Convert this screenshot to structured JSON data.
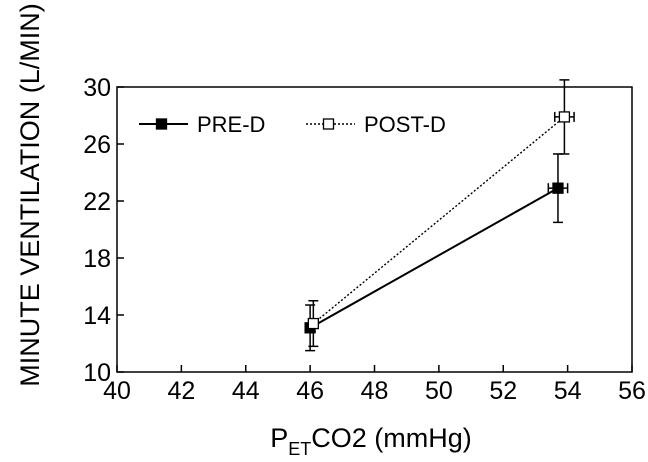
{
  "chart_data": {
    "type": "line",
    "title": "",
    "xlabel": {
      "main": "P",
      "sub": "ET",
      "rest": "CO2 (mmHg)"
    },
    "ylabel": "MINUTE VENTILATION (L/MIN)",
    "xlim": [
      40,
      56
    ],
    "ylim": [
      10,
      30
    ],
    "xticks": [
      40,
      42,
      44,
      46,
      48,
      50,
      52,
      54,
      56
    ],
    "yticks": [
      10,
      14,
      18,
      22,
      26,
      30
    ],
    "grid": false,
    "legend_position": "top-left",
    "series": [
      {
        "name": "PRE-D",
        "marker": "filled-square",
        "line_style": "solid",
        "color": "#000000",
        "points": [
          {
            "x": 46.0,
            "y": 13.1,
            "y_err": 1.6,
            "x_err": 0.0
          },
          {
            "x": 53.7,
            "y": 22.9,
            "y_err": 2.4,
            "x_err": 0.3
          }
        ]
      },
      {
        "name": "POST-D",
        "marker": "open-square",
        "line_style": "dotted",
        "color": "#000000",
        "points": [
          {
            "x": 46.1,
            "y": 13.4,
            "y_err": 1.6,
            "x_err": 0.0
          },
          {
            "x": 53.9,
            "y": 27.9,
            "y_err": 2.6,
            "x_err": 0.3
          }
        ]
      }
    ]
  }
}
